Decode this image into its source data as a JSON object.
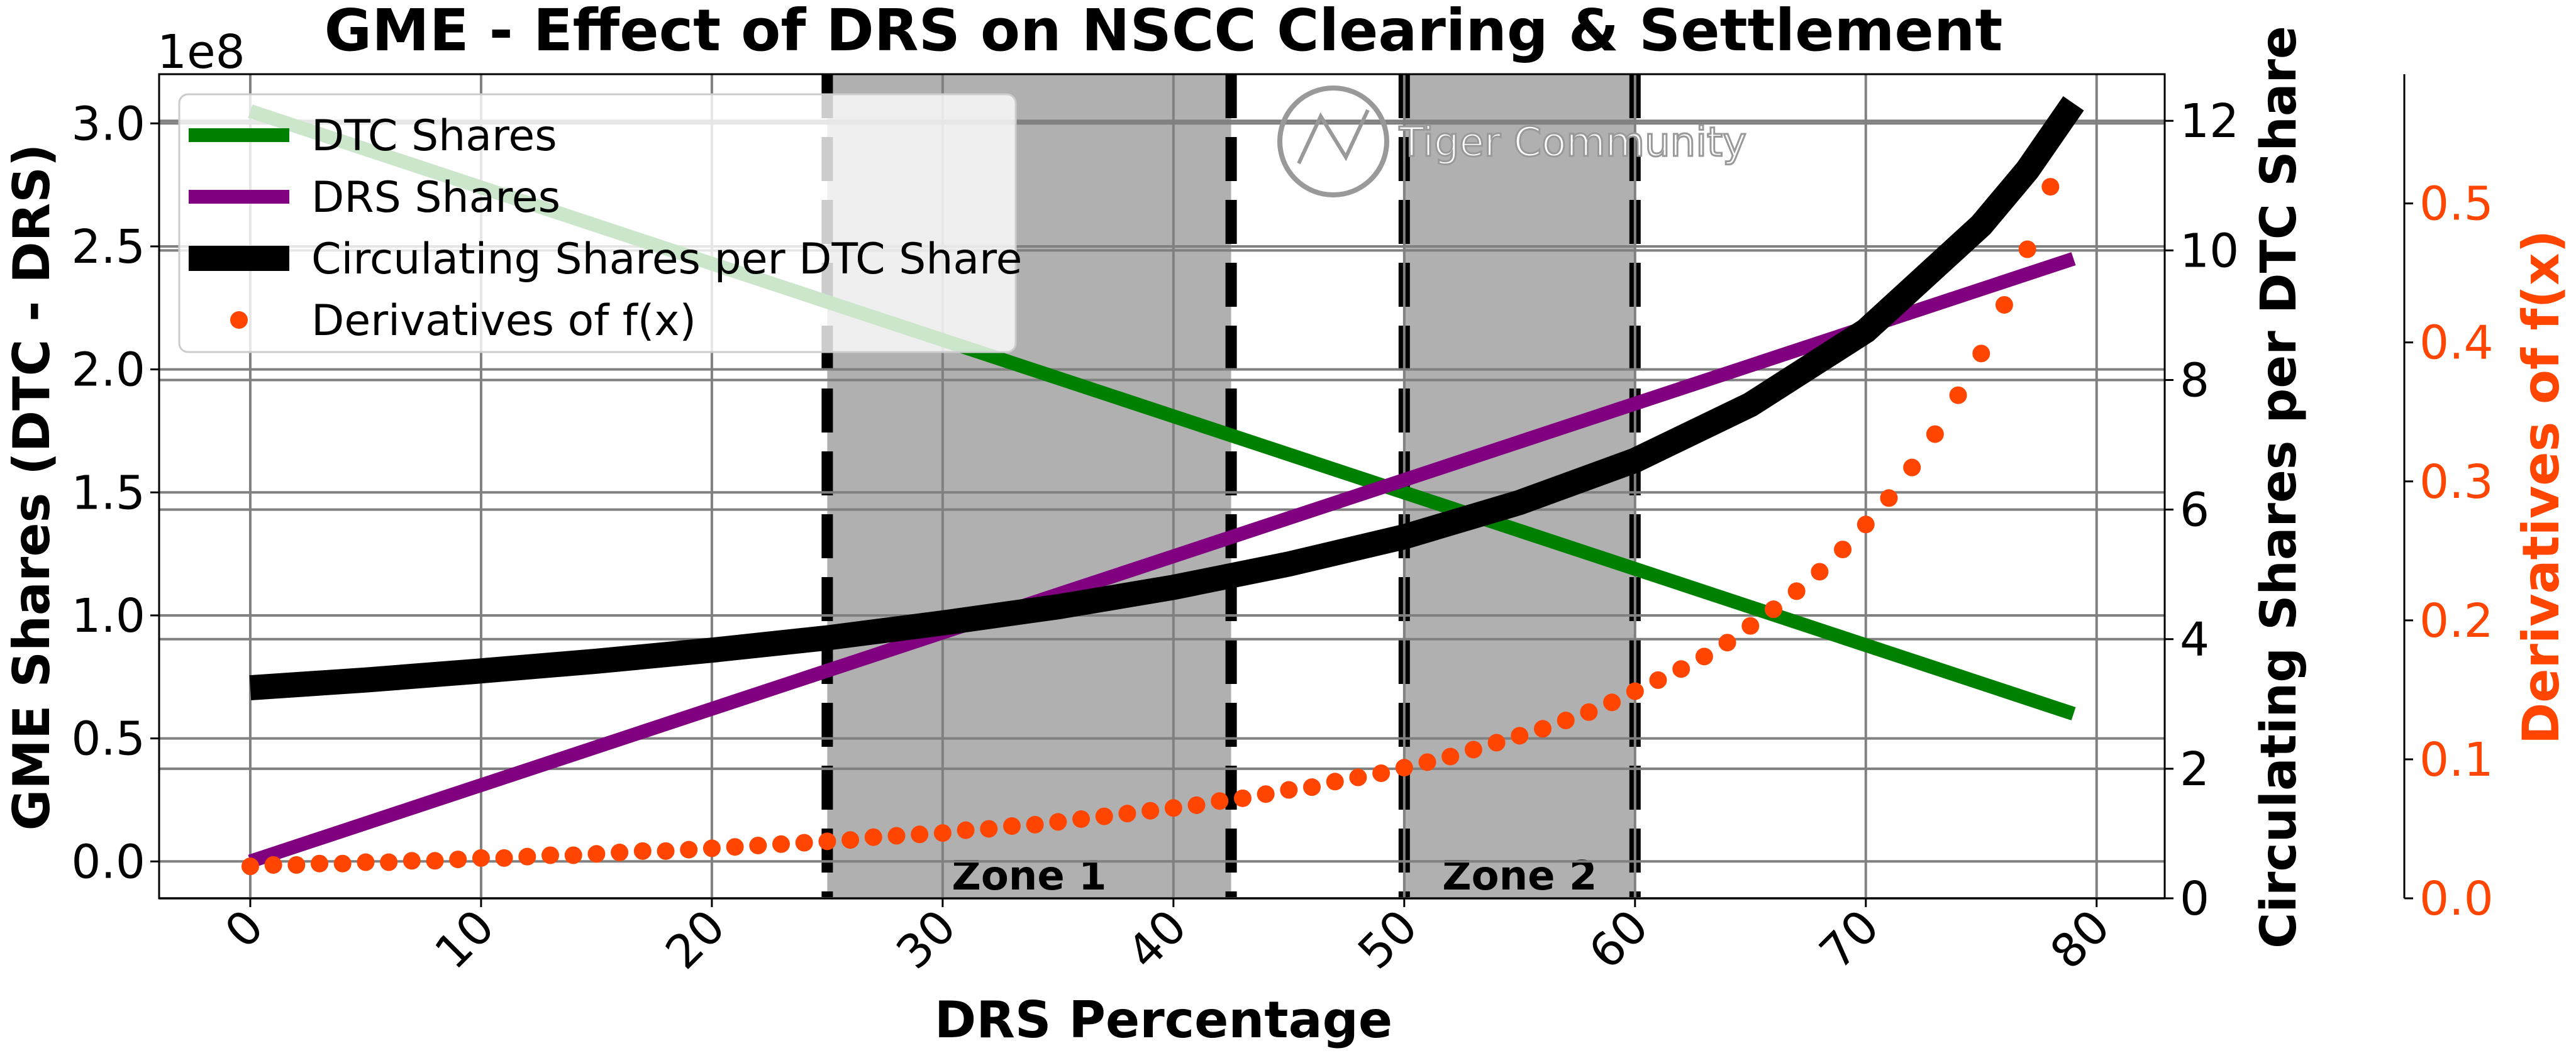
{
  "chart_data": {
    "type": "line",
    "title": "GME - Effect of DRS on NSCC Clearing & Settlement",
    "xlabel": "DRS Percentage",
    "ylabel": "GME Shares (DTC - DRS)",
    "ylabel_right": "Circulating Shares per DTC Share",
    "ylabel_right2": "Derivatives of f(x)",
    "y_offset_label": "1e8",
    "xlim": [
      -3.95,
      82.95
    ],
    "ylim": [
      -0.15,
      3.2
    ],
    "ylim_right": [
      0,
      12.72
    ],
    "ylim_right2": [
      0,
      0.593
    ],
    "x_ticks": [
      "0",
      "10",
      "20",
      "30",
      "40",
      "50",
      "60",
      "70",
      "80"
    ],
    "y_ticks": [
      "0.0",
      "0.5",
      "1.0",
      "1.5",
      "2.0",
      "2.5",
      "3.0"
    ],
    "y_ticks_right": [
      "0",
      "2",
      "4",
      "6",
      "8",
      "10",
      "12"
    ],
    "y_ticks_right2": [
      "0.0",
      "0.1",
      "0.2",
      "0.3",
      "0.4",
      "0.5"
    ],
    "grid": true,
    "legend_position": "top-left",
    "colors": {
      "dtc": "#008000",
      "drs": "#800080",
      "circulating": "#000000",
      "derivative": "#FF4500",
      "zone": "#b0b0b0"
    },
    "series": [
      {
        "name": "DTC Shares",
        "axis": "left",
        "x": [
          0,
          79
        ],
        "y": [
          3.05,
          0.6
        ]
      },
      {
        "name": "DRS Shares",
        "axis": "left",
        "x": [
          0,
          79
        ],
        "y": [
          0.0,
          2.45
        ]
      },
      {
        "name": "Circulating Shares per DTC Share",
        "axis": "right",
        "x": [
          0,
          5,
          10,
          15,
          20,
          25,
          30,
          35,
          40,
          45,
          50,
          55,
          60,
          65,
          70,
          75,
          77,
          79
        ],
        "y": [
          3.25,
          3.37,
          3.51,
          3.66,
          3.83,
          4.02,
          4.25,
          4.5,
          4.8,
          5.16,
          5.58,
          6.11,
          6.76,
          7.62,
          8.76,
          10.39,
          11.24,
          12.27
        ]
      },
      {
        "name": "Derivatives of f(x)",
        "axis": "right2",
        "style": "scatter",
        "x": [
          0,
          1,
          2,
          3,
          4,
          5,
          6,
          7,
          8,
          9,
          10,
          11,
          12,
          13,
          14,
          15,
          16,
          17,
          18,
          19,
          20,
          21,
          22,
          23,
          24,
          25,
          26,
          27,
          28,
          29,
          30,
          31,
          32,
          33,
          34,
          35,
          36,
          37,
          38,
          39,
          40,
          41,
          42,
          43,
          44,
          45,
          46,
          47,
          48,
          49,
          50,
          51,
          52,
          53,
          54,
          55,
          56,
          57,
          58,
          59,
          60,
          61,
          62,
          63,
          64,
          65,
          66,
          67,
          68,
          69,
          70,
          71,
          72,
          73,
          74,
          75,
          76,
          77,
          78
        ],
        "y": [
          0.023,
          0.024,
          0.024,
          0.025,
          0.025,
          0.026,
          0.026,
          0.027,
          0.027,
          0.028,
          0.029,
          0.029,
          0.03,
          0.031,
          0.031,
          0.032,
          0.033,
          0.034,
          0.034,
          0.035,
          0.036,
          0.037,
          0.038,
          0.039,
          0.04,
          0.041,
          0.042,
          0.044,
          0.045,
          0.046,
          0.047,
          0.049,
          0.05,
          0.052,
          0.053,
          0.055,
          0.057,
          0.059,
          0.061,
          0.063,
          0.065,
          0.067,
          0.07,
          0.072,
          0.075,
          0.078,
          0.08,
          0.084,
          0.087,
          0.09,
          0.094,
          0.098,
          0.102,
          0.107,
          0.112,
          0.117,
          0.122,
          0.128,
          0.134,
          0.141,
          0.149,
          0.157,
          0.165,
          0.174,
          0.184,
          0.196,
          0.208,
          0.221,
          0.235,
          0.251,
          0.269,
          0.288,
          0.31,
          0.334,
          0.362,
          0.392,
          0.427,
          0.467,
          0.512
        ]
      }
    ],
    "zones": [
      {
        "label": "Zone 1",
        "x": [
          25,
          42.5
        ]
      },
      {
        "label": "Zone 2",
        "x": [
          50,
          60
        ]
      }
    ]
  },
  "watermark": {
    "text": "Tiger Community"
  }
}
